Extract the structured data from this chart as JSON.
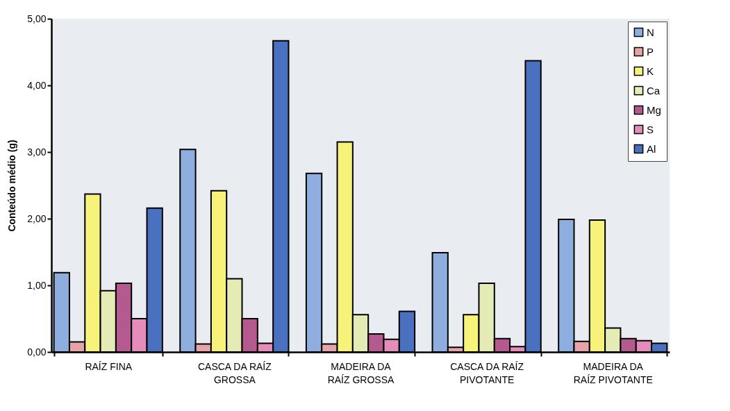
{
  "chart_data": {
    "type": "bar",
    "ylabel": "Conteúdo médio (g)",
    "categories": [
      "RAÍZ FINA",
      "CASCA DA RAÍZ GROSSA",
      "MADEIRA DA RAÍZ GROSSA",
      "CASCA DA RAÍZ PIVOTANTE",
      "MADEIRA DA RAÍZ PIVOTANTE"
    ],
    "series": [
      {
        "name": "N",
        "color": "#8eaee0",
        "values": [
          1.19,
          3.04,
          2.68,
          1.49,
          1.99
        ]
      },
      {
        "name": "P",
        "color": "#e6a4a8",
        "values": [
          0.15,
          0.12,
          0.12,
          0.07,
          0.16
        ]
      },
      {
        "name": "K",
        "color": "#f7f27a",
        "values": [
          2.37,
          2.42,
          3.15,
          0.56,
          1.98
        ]
      },
      {
        "name": "Ca",
        "color": "#e4ebb4",
        "values": [
          0.92,
          1.1,
          0.56,
          1.03,
          0.36
        ]
      },
      {
        "name": "Mg",
        "color": "#b45a8e",
        "values": [
          1.03,
          0.5,
          0.27,
          0.2,
          0.2
        ]
      },
      {
        "name": "S",
        "color": "#e48cbc",
        "values": [
          0.5,
          0.13,
          0.19,
          0.08,
          0.17
        ]
      },
      {
        "name": "Al",
        "color": "#4a70c0",
        "values": [
          2.16,
          4.67,
          0.61,
          4.37,
          0.13
        ]
      }
    ],
    "ylim": [
      0,
      5
    ],
    "yticks": [
      {
        "value": 0,
        "label": "0,00"
      },
      {
        "value": 1,
        "label": "1,00"
      },
      {
        "value": 2,
        "label": "2,00"
      },
      {
        "value": 3,
        "label": "3,00"
      },
      {
        "value": 4,
        "label": "4,00"
      },
      {
        "value": 5,
        "label": "5,00"
      }
    ],
    "grid": false,
    "legend": "top right"
  }
}
